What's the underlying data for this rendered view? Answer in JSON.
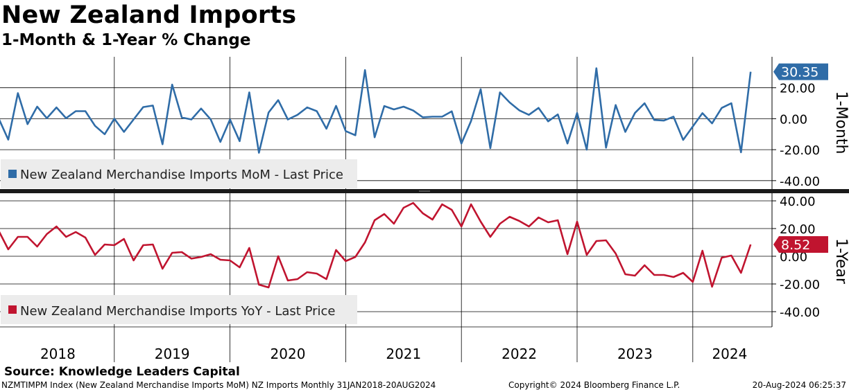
{
  "title": "New Zealand Imports",
  "subtitle": "1-Month & 1-Year % Change",
  "source": "Source: Knowledge Leaders Capital",
  "footer": {
    "left": "NZMTIMPM Index (New Zealand Merchandise Imports MoM) NZ Imports  Monthly 31JAN2018-20AUG2024",
    "center": "Copyright© 2024 Bloomberg Finance L.P.",
    "right": "20-Aug-2024 06:25:37"
  },
  "colors": {
    "mom": "#2f6ca7",
    "yoy": "#c0142f",
    "grid": "#000000"
  },
  "chart_data": [
    {
      "type": "line",
      "panel": "top",
      "axis_title": "1-Month",
      "legend": "New Zealand Merchandise Imports MoM - Last Price",
      "last_value_label": "30.35",
      "ylim": [
        -45,
        40
      ],
      "y_ticks": [
        -40,
        -20,
        0,
        20
      ],
      "y_tick_labels": [
        "-40.00",
        "-20.00",
        "0.00",
        "20.00"
      ],
      "x_labels": [
        "2018",
        "2019",
        "2020",
        "2021",
        "2022",
        "2023",
        "2024"
      ],
      "x_start": "2018-01",
      "values": [
        0.3,
        -13.5,
        16.5,
        -3.5,
        7.8,
        0.3,
        7.3,
        0.3,
        4.9,
        4.9,
        -4.6,
        -10.0,
        0.0,
        -8.5,
        -0.5,
        7.5,
        8.5,
        -16.5,
        22.0,
        0.8,
        -0.5,
        6.6,
        -0.5,
        -15.0,
        -0.5,
        -14.5,
        17.0,
        -22.0,
        4.0,
        12.0,
        -0.5,
        2.5,
        7.3,
        4.9,
        -6.5,
        8.3,
        -8.0,
        -10.7,
        31.4,
        -12.0,
        8.2,
        6.0,
        7.8,
        5.3,
        0.9,
        1.3,
        1.3,
        4.8,
        -16.0,
        -1.5,
        19.0,
        -19.0,
        17.0,
        10.5,
        5.4,
        2.5,
        7.0,
        -1.7,
        2.8,
        -16.0,
        3.7,
        -20.0,
        32.6,
        -18.7,
        8.8,
        -8.5,
        3.7,
        10.0,
        -0.8,
        -1.2,
        1.3,
        -13.7,
        -5.0,
        3.6,
        -3.0,
        7.0,
        10.0,
        -21.7,
        30.35
      ]
    },
    {
      "type": "line",
      "panel": "bottom",
      "axis_title": "1-Year",
      "legend": "New Zealand Merchandise Imports YoY - Last Price",
      "last_value_label": "8.52",
      "ylim": [
        -51,
        44
      ],
      "y_ticks": [
        -40,
        -20,
        0,
        20,
        40
      ],
      "y_tick_labels": [
        "-40.00",
        "-20.00",
        "0.00",
        "20.00",
        "40.00"
      ],
      "x_labels": [
        "2018",
        "2019",
        "2020",
        "2021",
        "2022",
        "2023",
        "2024"
      ],
      "x_start": "2018-01",
      "values": [
        18.5,
        5.0,
        14.0,
        14.0,
        7.0,
        16.0,
        21.5,
        14.0,
        17.5,
        13.5,
        1.0,
        8.5,
        8.0,
        12.5,
        -3.0,
        8.0,
        8.5,
        -9.0,
        2.5,
        3.0,
        -1.7,
        -0.5,
        1.5,
        -2.5,
        -3.0,
        -8.0,
        6.0,
        -20.5,
        -22.5,
        0.0,
        -17.5,
        -16.5,
        -11.5,
        -12.5,
        -16.5,
        4.5,
        -3.5,
        -0.5,
        10.0,
        26.0,
        30.5,
        23.5,
        35.0,
        38.5,
        31.0,
        26.5,
        37.5,
        33.5,
        21.5,
        37.5,
        25.0,
        14.0,
        23.5,
        28.5,
        25.5,
        21.5,
        28.0,
        24.5,
        26.0,
        1.5,
        25.0,
        1.0,
        11.0,
        11.5,
        2.0,
        -13.0,
        -14.0,
        -6.5,
        -13.5,
        -13.5,
        -15.0,
        -12.0,
        -18.5,
        4.0,
        -22.0,
        -1.0,
        0.5,
        -12.0,
        8.52
      ]
    }
  ]
}
